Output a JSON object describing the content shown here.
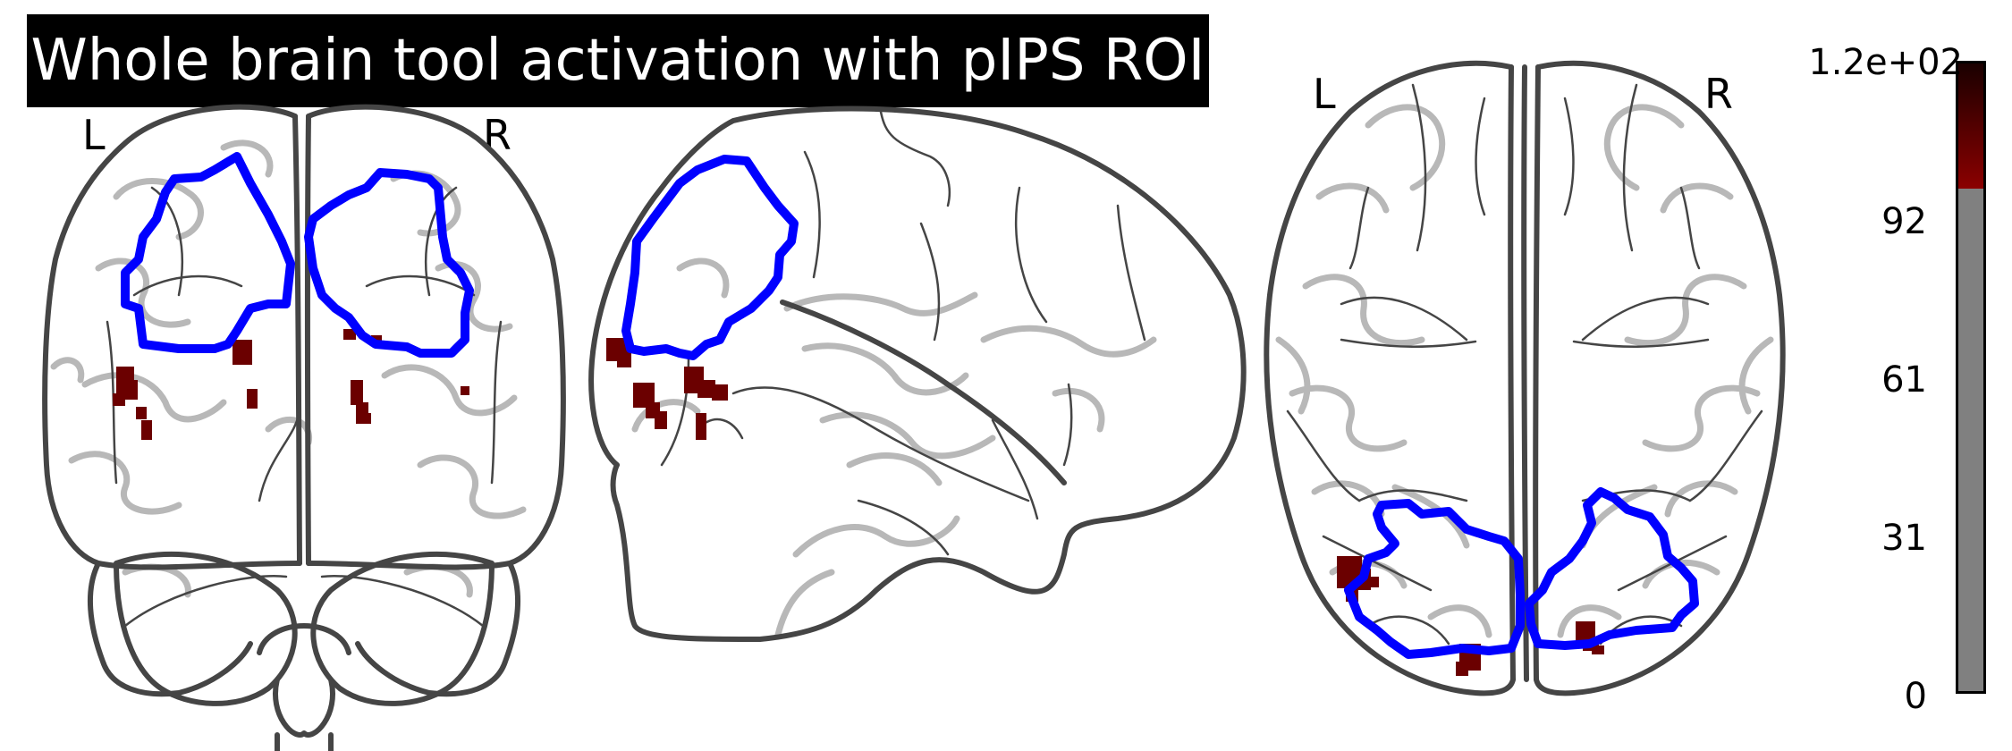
{
  "title": "Whole brain tool activation with pIPS ROI",
  "views": {
    "coronal": {
      "left_label": "L",
      "right_label": "R"
    },
    "axial": {
      "left_label": "L",
      "right_label": "R"
    }
  },
  "colorbar": {
    "max_label": "1.2e+02",
    "ticks": [
      "92",
      "61",
      "31",
      "0"
    ],
    "min": 0,
    "max": 120,
    "threshold_fraction": 0.8,
    "colors": {
      "threshold_gray": "#808080",
      "low_red": "#8b0000",
      "high_black": "#1a0000"
    }
  },
  "colors": {
    "roi_outline": "#0000ff",
    "activation": "#6b0000",
    "brain_outline": "#454545",
    "sulci": "#b8b8b8"
  }
}
